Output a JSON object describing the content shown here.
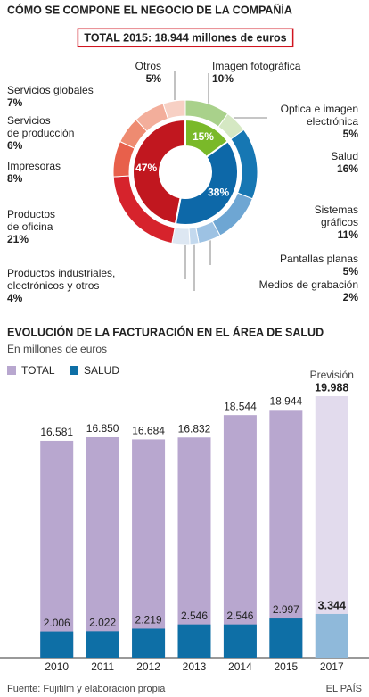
{
  "chart_data": [
    {
      "type": "donut",
      "title": "CÓMO SE COMPONE EL NEGOCIO DE LA COMPAÑÍA",
      "subtitle": "TOTAL 2015: 18.944 millones de euros",
      "categories": [
        "Imagen fotográfica",
        "Optica e imagen\nelectrónica",
        "Salud",
        "Sistemas\ngráficos",
        "Pantallas planas",
        "Medios de grabación",
        "Productos industriales,\nelectrónicos y otros",
        "Productos\nde oficina",
        "Impresoras",
        "Servicios\nde producción",
        "Servicios globales",
        "Otros"
      ],
      "values": [
        10,
        5,
        16,
        11,
        5,
        2,
        4,
        21,
        8,
        6,
        7,
        5
      ],
      "value_labels": [
        "10%",
        "5%",
        "16%",
        "11%",
        "5%",
        "2%",
        "4%",
        "21%",
        "8%",
        "6%",
        "7%",
        "5%"
      ],
      "colors": [
        "#a9d18b",
        "#d5e8c3",
        "#1677b3",
        "#6ea6d3",
        "#9dc2e3",
        "#c3d9ee",
        "#dde7f2",
        "#d6232c",
        "#e8604b",
        "#ee8b71",
        "#f3ae9b",
        "#f7d0c4"
      ],
      "inner_values": [
        15,
        38,
        47
      ],
      "inner_value_labels": [
        "15%",
        "38%",
        "47%"
      ],
      "inner_colors": [
        "#7ab929",
        "#0d68a8",
        "#c1171f"
      ]
    },
    {
      "type": "bar",
      "title": "EVOLUCIÓN DE LA FACTURACIÓN EN EL ÁREA DE SALUD",
      "subtitle": "En millones de euros",
      "categories": [
        "2010",
        "2011",
        "2012",
        "2013",
        "2014",
        "2015",
        "2017"
      ],
      "annotation": "Previsión",
      "ylim": [
        0,
        20000
      ],
      "series": [
        {
          "name": "TOTAL",
          "color": "#b8a7cf",
          "colors": [
            "#b8a7cf",
            "#b8a7cf",
            "#b8a7cf",
            "#b8a7cf",
            "#b8a7cf",
            "#b8a7cf",
            "#e2dbed"
          ],
          "values": [
            16581,
            16850,
            16684,
            16832,
            18544,
            18944,
            19988
          ],
          "value_labels": [
            "16.581",
            "16.850",
            "16.684",
            "16.832",
            "18.544",
            "18.944",
            "19.988"
          ]
        },
        {
          "name": "SALUD",
          "color": "#0e6fa6",
          "colors": [
            "#0e6fa6",
            "#0e6fa6",
            "#0e6fa6",
            "#0e6fa6",
            "#0e6fa6",
            "#0e6fa6",
            "#8fb9da"
          ],
          "values": [
            2006,
            2022,
            2219,
            2546,
            2546,
            2997,
            3344
          ],
          "value_labels": [
            "2.006",
            "2.022",
            "2.219",
            "2.546",
            "2.546",
            "2.997",
            "3.344"
          ]
        }
      ]
    }
  ],
  "source": "Fuente: Fujifilm y elaboración propia",
  "brand": "EL PAÍS"
}
